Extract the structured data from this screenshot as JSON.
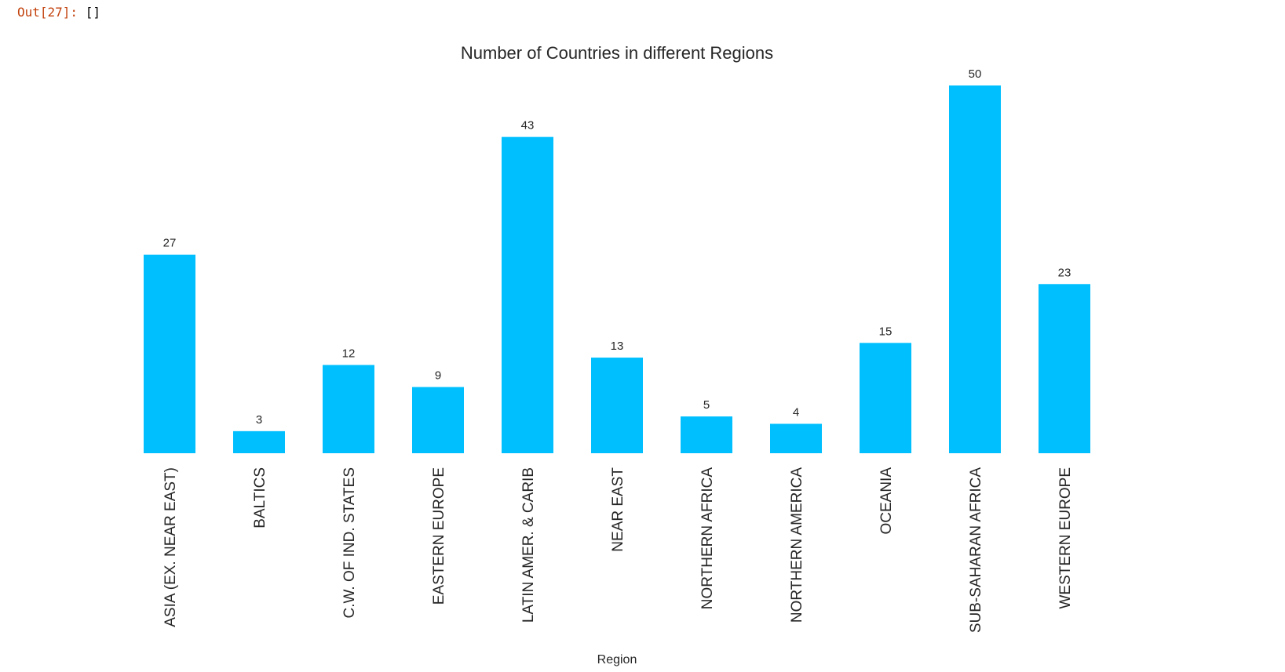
{
  "notebook": {
    "out_label": "Out[27]:",
    "out_value": "[]"
  },
  "colors": {
    "bar": "#00bfff",
    "text": "#262626",
    "out_label": "#c2410c"
  },
  "chart_data": {
    "type": "bar",
    "title": "Number of Countries in different Regions",
    "xlabel": "Region",
    "ylabel": "",
    "ylim": [
      0,
      50
    ],
    "grid": false,
    "categories": [
      "ASIA (EX. NEAR EAST)",
      "BALTICS",
      "C.W. OF IND. STATES",
      "EASTERN EUROPE",
      "LATIN AMER. & CARIB",
      "NEAR EAST",
      "NORTHERN AFRICA",
      "NORTHERN AMERICA",
      "OCEANIA",
      "SUB-SAHARAN AFRICA",
      "WESTERN EUROPE"
    ],
    "values": [
      27,
      3,
      12,
      9,
      43,
      13,
      5,
      4,
      15,
      50,
      23
    ]
  }
}
